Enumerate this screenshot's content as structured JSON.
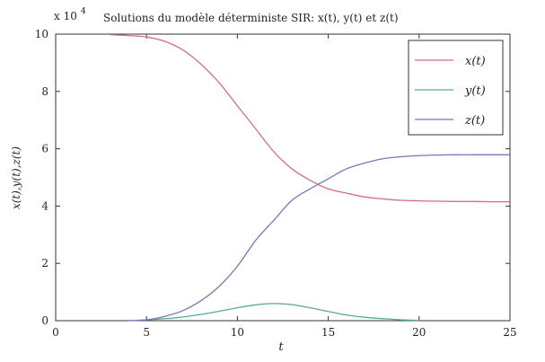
{
  "figure": {
    "title": "Solutions du modèle déterministe SIR: x(t), y(t) et z(t)",
    "exponent_base": "x 10",
    "exponent_power": "4"
  },
  "chart_data": {
    "type": "line",
    "title": "Solutions du modèle déterministe SIR: x(t), y(t) et z(t)",
    "xlabel": "t",
    "ylabel": "x(t),y(t),z(t)",
    "xlim": [
      0,
      25
    ],
    "ylim": [
      0,
      10
    ],
    "y_scale_note": "x 10^4",
    "xticks": [
      "0",
      "5",
      "10",
      "15",
      "20",
      "25"
    ],
    "yticks": [
      "0",
      "2",
      "4",
      "6",
      "8",
      "10"
    ],
    "grid": false,
    "legend_position": "top-right",
    "series": [
      {
        "name": "x(t)",
        "color": "#d0707f",
        "x": [
          3,
          4,
          5,
          6,
          7,
          8,
          9,
          10,
          11,
          12,
          13,
          14,
          15,
          16,
          17,
          18,
          19,
          20,
          21,
          22,
          23,
          24,
          25
        ],
        "y": [
          9.98,
          9.95,
          9.9,
          9.75,
          9.45,
          8.95,
          8.3,
          7.5,
          6.7,
          5.9,
          5.3,
          4.9,
          4.6,
          4.45,
          4.32,
          4.25,
          4.2,
          4.18,
          4.17,
          4.16,
          4.16,
          4.15,
          4.15
        ]
      },
      {
        "name": "y(t)",
        "color": "#5aa896",
        "x": [
          4,
          5,
          6,
          7,
          8,
          9,
          10,
          11,
          12,
          13,
          14,
          15,
          16,
          17,
          18,
          19,
          20
        ],
        "y": [
          0,
          0.03,
          0.07,
          0.13,
          0.22,
          0.33,
          0.45,
          0.55,
          0.6,
          0.56,
          0.45,
          0.32,
          0.2,
          0.12,
          0.07,
          0.03,
          0.01
        ]
      },
      {
        "name": "z(t)",
        "color": "#7878b8",
        "x": [
          4,
          5,
          6,
          7,
          8,
          9,
          10,
          11,
          12,
          13,
          14,
          15,
          16,
          17,
          18,
          19,
          20,
          21,
          22,
          23,
          24,
          25
        ],
        "y": [
          0,
          0.03,
          0.15,
          0.35,
          0.7,
          1.2,
          1.9,
          2.8,
          3.5,
          4.2,
          4.6,
          4.95,
          5.3,
          5.5,
          5.65,
          5.72,
          5.76,
          5.78,
          5.79,
          5.79,
          5.79,
          5.79
        ]
      }
    ]
  }
}
